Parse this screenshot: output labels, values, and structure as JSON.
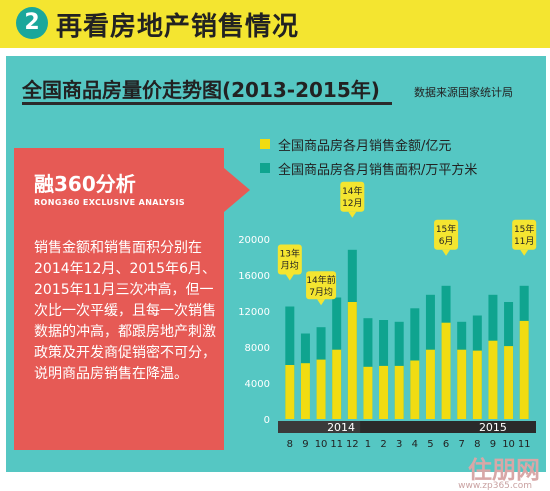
{
  "header": {
    "badge_number": "2",
    "title": "再看房地产销售情况"
  },
  "panel": {
    "chart_title": "全国商品房量价走势图(2013-2015年)",
    "source": "数据来源国家统计局"
  },
  "note": {
    "title": "融360分析",
    "subtitle": "RONG360 EXCLUSIVE ANALYSIS",
    "body": "销售金额和销售面积分别在2014年12月、2015年6月、2015年11月三次冲高，但一次比一次平缓，且每一次销售数据的冲高，都跟房地产刺激政策及开发商促销密不可分，说明商品房销售在降温。"
  },
  "colors": {
    "amount": "#f1dc12",
    "area": "#0fa48f",
    "panel": "#55c7c3",
    "note": "#e65a55",
    "header": "#f4e530",
    "year_band": "#3a3a3a",
    "callout": "#f4e530"
  },
  "chart_data": {
    "type": "bar",
    "ylim": [
      0,
      20000
    ],
    "yticks": [
      "20000",
      "16000",
      "12000",
      "8000",
      "4000",
      "0"
    ],
    "categories": [
      "8",
      "9",
      "10",
      "11",
      "12",
      "1",
      "2",
      "3",
      "4",
      "5",
      "6",
      "7",
      "8",
      "9",
      "10",
      "11"
    ],
    "year_labels": [
      "2014",
      "2015"
    ],
    "series": [
      {
        "name": "全国商品房各月销售金额/亿元",
        "values": [
          6000,
          6200,
          6600,
          7700,
          13000,
          5800,
          5900,
          5900,
          6500,
          7700,
          10700,
          7700,
          7600,
          8700,
          8100,
          10900
        ]
      },
      {
        "name": "全国商品房各月销售面积/万平方米",
        "values": [
          12500,
          9500,
          10200,
          13500,
          18800,
          11200,
          11000,
          10800,
          12300,
          13800,
          14800,
          10800,
          11500,
          13800,
          13000,
          14800
        ]
      }
    ],
    "annotations": [
      {
        "text": "13年月均"
      },
      {
        "text": "14年前7月均"
      },
      {
        "text": "14年12月"
      },
      {
        "text": "15年6月"
      },
      {
        "text": "15年11月"
      }
    ]
  },
  "footer": {
    "logo": "住朋网",
    "url": "www.zp365.com"
  }
}
